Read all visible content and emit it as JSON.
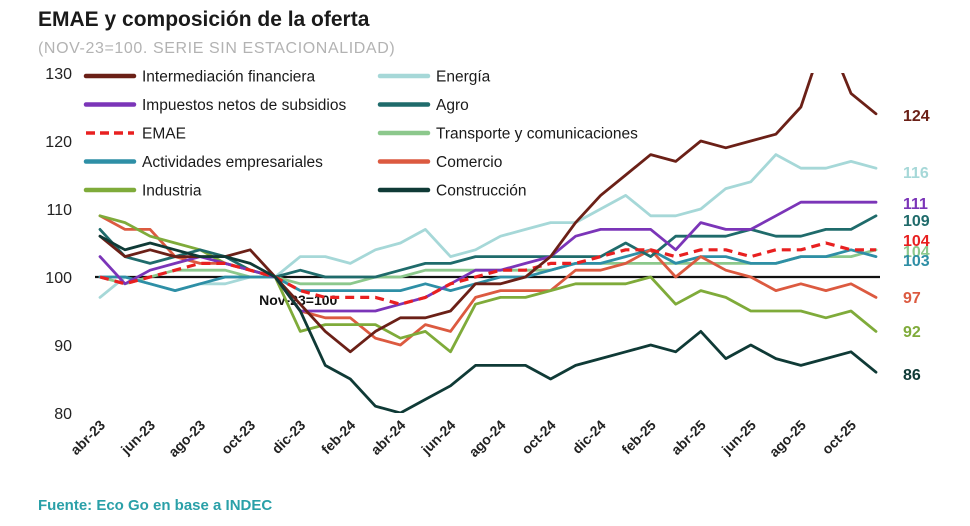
{
  "title": "EMAE y composición de la oferta",
  "subtitle": "(NOV-23=100. SERIE SIN ESTACIONALIDAD)",
  "source": "Fuente: Eco Go en base a INDEC",
  "chart_data": {
    "type": "line",
    "title": "EMAE y composición de la oferta",
    "ylim": [
      80,
      130
    ],
    "yticks": [
      80,
      90,
      100,
      110,
      120,
      130
    ],
    "x": [
      "abr-23",
      "may-23",
      "jun-23",
      "jul-23",
      "ago-23",
      "sep-23",
      "oct-23",
      "nov-23",
      "dic-23",
      "ene-24",
      "feb-24",
      "mar-24",
      "abr-24",
      "may-24",
      "jun-24",
      "jul-24",
      "ago-24",
      "sep-24",
      "oct-24",
      "nov-24",
      "dic-24",
      "ene-25",
      "feb-25",
      "mar-25",
      "abr-25",
      "may-25",
      "jun-25",
      "jul-25",
      "ago-25",
      "sep-25",
      "oct-25",
      "nov-25"
    ],
    "xtick_labels": [
      "abr-23",
      "jun-23",
      "ago-23",
      "oct-23",
      "dic-23",
      "feb-24",
      "abr-24",
      "jun-24",
      "ago-24",
      "oct-24",
      "dic-24",
      "feb-25",
      "abr-25",
      "jun-25",
      "ago-25",
      "oct-25"
    ],
    "reference_line": {
      "value": 100,
      "label": "Nov-23=100"
    },
    "legend_position": "top",
    "series": [
      {
        "name": "Intermediación financiera",
        "color": "#6b2017",
        "style": "solid",
        "end_label": "124",
        "values": [
          106,
          103,
          104,
          103,
          103,
          103,
          104,
          100,
          96,
          92,
          89,
          92,
          94,
          94,
          95,
          99,
          99,
          100,
          103,
          108,
          112,
          115,
          118,
          117,
          120,
          119,
          120,
          121,
          125,
          136,
          127,
          124
        ]
      },
      {
        "name": "Energía",
        "color": "#a6d8d8",
        "style": "solid",
        "end_label": "116",
        "values": [
          97,
          100,
          99,
          98,
          99,
          99,
          100,
          100,
          103,
          103,
          102,
          104,
          105,
          107,
          103,
          104,
          106,
          107,
          108,
          108,
          110,
          112,
          109,
          109,
          110,
          113,
          114,
          118,
          116,
          116,
          117,
          116
        ]
      },
      {
        "name": "Impuestos netos de subsidios",
        "color": "#7b35b8",
        "style": "solid",
        "end_label": "111",
        "values": [
          103,
          99,
          101,
          102,
          103,
          102,
          101,
          100,
          95,
          95,
          95,
          95,
          96,
          97,
          99,
          101,
          101,
          102,
          103,
          106,
          107,
          107,
          107,
          104,
          108,
          107,
          107,
          109,
          111,
          111,
          111,
          111
        ]
      },
      {
        "name": "Agro",
        "color": "#1f6b6b",
        "style": "solid",
        "end_label": "109",
        "values": [
          107,
          103,
          102,
          103,
          104,
          103,
          101,
          100,
          101,
          100,
          100,
          100,
          101,
          102,
          102,
          103,
          103,
          103,
          103,
          103,
          103,
          105,
          103,
          106,
          106,
          106,
          107,
          106,
          106,
          107,
          107,
          109
        ]
      },
      {
        "name": "EMAE",
        "color": "#e82020",
        "style": "dashed",
        "end_label": "104",
        "values": [
          100,
          99,
          100,
          101,
          102,
          102,
          101,
          100,
          98,
          97,
          97,
          97,
          96,
          97,
          99,
          100,
          101,
          101,
          102,
          102,
          103,
          104,
          104,
          103,
          104,
          104,
          103,
          104,
          104,
          105,
          104,
          104
        ]
      },
      {
        "name": "Transporte y comunicaciones",
        "color": "#8cc88c",
        "style": "solid",
        "end_label": "104",
        "values": [
          100,
          99,
          100,
          101,
          101,
          101,
          100,
          100,
          99,
          99,
          99,
          100,
          100,
          101,
          101,
          101,
          101,
          101,
          101,
          102,
          102,
          102,
          102,
          102,
          102,
          102,
          102,
          102,
          103,
          103,
          103,
          104
        ]
      },
      {
        "name": "Actividades empresariales",
        "color": "#2e8fa6",
        "style": "solid",
        "end_label": "103",
        "values": [
          100,
          100,
          99,
          98,
          99,
          100,
          100,
          100,
          98,
          98,
          98,
          98,
          98,
          99,
          98,
          99,
          100,
          100,
          101,
          102,
          102,
          103,
          104,
          102,
          103,
          103,
          102,
          102,
          103,
          103,
          104,
          103
        ]
      },
      {
        "name": "Comercio",
        "color": "#dc5a40",
        "style": "solid",
        "end_label": "97",
        "values": [
          109,
          107,
          107,
          103,
          102,
          102,
          101,
          100,
          95,
          94,
          94,
          91,
          90,
          93,
          92,
          97,
          98,
          98,
          98,
          101,
          101,
          102,
          104,
          100,
          103,
          101,
          100,
          98,
          99,
          98,
          99,
          97
        ]
      },
      {
        "name": "Industria",
        "color": "#7fab3a",
        "style": "solid",
        "end_label": "92",
        "values": [
          109,
          108,
          106,
          105,
          104,
          102,
          101,
          100,
          92,
          93,
          93,
          93,
          91,
          92,
          89,
          96,
          97,
          97,
          98,
          99,
          99,
          99,
          100,
          96,
          98,
          97,
          95,
          95,
          95,
          94,
          95,
          92
        ]
      },
      {
        "name": "Construcción",
        "color": "#0f3a36",
        "style": "solid",
        "end_label": "86",
        "values": [
          106,
          104,
          105,
          104,
          103,
          103,
          102,
          100,
          95,
          87,
          85,
          81,
          80,
          82,
          84,
          87,
          87,
          87,
          85,
          87,
          88,
          89,
          90,
          89,
          92,
          88,
          90,
          88,
          87,
          88,
          89,
          86
        ]
      }
    ]
  }
}
